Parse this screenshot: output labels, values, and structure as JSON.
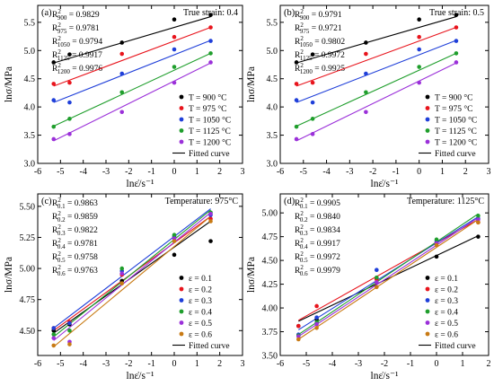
{
  "figure": {
    "panel_labels": [
      "(a)",
      "(b)",
      "(c)",
      "(d)"
    ]
  },
  "chart_data": [
    {
      "type": "scatter",
      "panel": "(a)",
      "condition": "True strain: 0.4",
      "xlabel": "lnε̇/s⁻¹",
      "ylabel": "lnσ/MPa",
      "xlim": [
        -6,
        3
      ],
      "ylim": [
        3.0,
        5.8
      ],
      "xticks": [
        -6,
        -5,
        -4,
        -3,
        -2,
        -1,
        0,
        1,
        2,
        3
      ],
      "yticks": [
        3.0,
        3.5,
        4.0,
        4.5,
        5.0,
        5.5
      ],
      "grid": false,
      "legend_position": "lower-right",
      "r2": [
        {
          "sub": "900",
          "value": "0.9829"
        },
        {
          "sub": "975",
          "value": "0.9781"
        },
        {
          "sub": "1050",
          "value": "0.9794"
        },
        {
          "sub": "1125",
          "value": "0.9917"
        },
        {
          "sub": "1200",
          "value": "0.9976"
        }
      ],
      "series": [
        {
          "name": "T = 900 °C",
          "color": "#000000",
          "x": [
            -5.3,
            -4.6,
            -2.3,
            0,
            1.6
          ],
          "y": [
            4.79,
            4.93,
            5.14,
            5.55,
            5.63
          ],
          "fit": [
            -5.3,
            4.78,
            1.6,
            5.6
          ]
        },
        {
          "name": "T = 975 °C",
          "color": "#e8141c",
          "x": [
            -5.3,
            -4.6,
            -2.3,
            0,
            1.6
          ],
          "y": [
            4.41,
            4.43,
            4.94,
            5.24,
            5.41
          ],
          "fit": [
            -5.3,
            4.37,
            1.6,
            5.41
          ]
        },
        {
          "name": "T = 1050 °C",
          "color": "#1f3fd9",
          "x": [
            -5.3,
            -4.6,
            -2.3,
            0,
            1.6
          ],
          "y": [
            4.12,
            4.08,
            4.59,
            5.02,
            5.17
          ],
          "fit": [
            -5.3,
            4.08,
            1.6,
            5.18
          ]
        },
        {
          "name": "T = 1125 °C",
          "color": "#1f9e2c",
          "x": [
            -5.3,
            -4.6,
            -2.3,
            0,
            1.6
          ],
          "y": [
            3.65,
            3.79,
            4.26,
            4.71,
            4.95
          ],
          "fit": [
            -5.3,
            3.66,
            1.6,
            4.95
          ]
        },
        {
          "name": "T = 1200 °C",
          "color": "#9b30d9",
          "x": [
            -5.3,
            -4.6,
            -2.3,
            0,
            1.6
          ],
          "y": [
            3.43,
            3.52,
            3.91,
            4.43,
            4.79
          ],
          "fit": [
            -5.3,
            3.4,
            1.6,
            4.78
          ]
        }
      ],
      "fitted_label": "Fitted curve"
    },
    {
      "type": "scatter",
      "panel": "(b)",
      "condition": "True strain: 0.5",
      "xlabel": "lnε̇/s⁻¹",
      "ylabel": "lnσ/MPa",
      "xlim": [
        -6,
        3
      ],
      "ylim": [
        3.0,
        5.8
      ],
      "xticks": [
        -6,
        -5,
        -4,
        -3,
        -2,
        -1,
        0,
        1,
        2,
        3
      ],
      "yticks": [
        3.0,
        3.5,
        4.0,
        4.5,
        5.0,
        5.5
      ],
      "grid": false,
      "legend_position": "lower-right",
      "r2": [
        {
          "sub": "900",
          "value": "0.9791"
        },
        {
          "sub": "975",
          "value": "0.9721"
        },
        {
          "sub": "1050",
          "value": "0.9802"
        },
        {
          "sub": "1125",
          "value": "0.9972"
        },
        {
          "sub": "1200",
          "value": "0.9925"
        }
      ],
      "series": [
        {
          "name": "T = 900 °C",
          "color": "#000000",
          "x": [
            -5.3,
            -4.6,
            -2.3,
            0,
            1.6
          ],
          "y": [
            4.79,
            4.93,
            5.14,
            5.55,
            5.63
          ],
          "fit": [
            -5.3,
            4.78,
            1.6,
            5.6
          ]
        },
        {
          "name": "T = 975 °C",
          "color": "#e8141c",
          "x": [
            -5.3,
            -4.6,
            -2.3,
            0,
            1.6
          ],
          "y": [
            4.41,
            4.43,
            4.94,
            5.24,
            5.41
          ],
          "fit": [
            -5.3,
            4.37,
            1.6,
            5.41
          ]
        },
        {
          "name": "T = 1050 °C",
          "color": "#1f3fd9",
          "x": [
            -5.3,
            -4.6,
            -2.3,
            0,
            1.6
          ],
          "y": [
            4.12,
            4.08,
            4.59,
            5.02,
            5.17
          ],
          "fit": [
            -5.3,
            4.08,
            1.6,
            5.18
          ]
        },
        {
          "name": "T = 1125 °C",
          "color": "#1f9e2c",
          "x": [
            -5.3,
            -4.6,
            -2.3,
            0,
            1.6
          ],
          "y": [
            3.65,
            3.79,
            4.26,
            4.71,
            4.95
          ],
          "fit": [
            -5.3,
            3.66,
            1.6,
            4.95
          ]
        },
        {
          "name": "T = 1200 °C",
          "color": "#9b30d9",
          "x": [
            -5.3,
            -4.6,
            -2.3,
            0,
            1.6
          ],
          "y": [
            3.43,
            3.52,
            3.91,
            4.43,
            4.79
          ],
          "fit": [
            -5.3,
            3.4,
            1.6,
            4.78
          ]
        }
      ],
      "fitted_label": "Fitted curve"
    },
    {
      "type": "scatter",
      "panel": "(c)",
      "condition": "Temperature: 975°C",
      "xlabel": "lnε̇/s⁻¹",
      "ylabel": "lnσ/MPa",
      "xlim": [
        -6,
        3
      ],
      "ylim": [
        4.3,
        5.6
      ],
      "xticks": [
        -6,
        -5,
        -4,
        -3,
        -2,
        -1,
        0,
        1,
        2,
        3
      ],
      "yticks": [
        4.5,
        4.75,
        5.0,
        5.25,
        5.5
      ],
      "grid": false,
      "legend_position": "lower-right",
      "r2": [
        {
          "sub": "0.1",
          "value": "0.9863"
        },
        {
          "sub": "0.2",
          "value": "0.9859"
        },
        {
          "sub": "0.3",
          "value": "0.9822"
        },
        {
          "sub": "0.4",
          "value": "0.9781"
        },
        {
          "sub": "0.5",
          "value": "0.9758"
        },
        {
          "sub": "0.6",
          "value": "0.9763"
        }
      ],
      "series": [
        {
          "name": "ε = 0.1",
          "color": "#000000",
          "x": [
            -5.3,
            -4.6,
            -2.3,
            0,
            1.6
          ],
          "y": [
            4.5,
            4.55,
            4.9,
            5.11,
            5.22
          ],
          "fit": [
            -5.3,
            4.48,
            1.6,
            5.38
          ]
        },
        {
          "name": "ε = 0.2",
          "color": "#e8141c",
          "x": [
            -5.3,
            -4.6,
            -2.3,
            0,
            1.6
          ],
          "y": [
            4.52,
            4.57,
            4.95,
            5.25,
            5.4
          ],
          "fit": [
            -5.3,
            4.5,
            1.6,
            5.42
          ]
        },
        {
          "name": "ε = 0.3",
          "color": "#1f3fd9",
          "x": [
            -5.3,
            -4.6,
            -2.3,
            0,
            1.6
          ],
          "y": [
            4.52,
            4.56,
            4.98,
            5.26,
            5.43
          ],
          "fit": [
            -5.3,
            4.52,
            1.6,
            5.48
          ]
        },
        {
          "name": "ε = 0.4",
          "color": "#1f9e2c",
          "x": [
            -5.3,
            -4.6,
            -2.3,
            0,
            1.6
          ],
          "y": [
            4.47,
            4.5,
            5.0,
            5.27,
            5.45
          ],
          "fit": [
            -5.3,
            4.45,
            1.6,
            5.47
          ]
        },
        {
          "name": "ε = 0.5",
          "color": "#9b30d9",
          "x": [
            -5.3,
            -4.6,
            -2.3,
            0,
            1.6
          ],
          "y": [
            4.44,
            4.41,
            4.96,
            5.24,
            5.44
          ],
          "fit": [
            -5.3,
            4.42,
            1.6,
            5.45
          ]
        },
        {
          "name": "ε = 0.6",
          "color": "#c87a14",
          "x": [
            -5.3,
            -4.6,
            -2.3,
            0,
            1.6
          ],
          "y": [
            4.38,
            4.39,
            4.88,
            5.22,
            5.38
          ],
          "fit": [
            -5.3,
            4.37,
            1.6,
            5.42
          ]
        }
      ],
      "fitted_label": "Fitted curve"
    },
    {
      "type": "scatter",
      "panel": "(d)",
      "condition": "Temperature: 1125°C",
      "xlabel": "lnε̇/s⁻¹",
      "ylabel": "lnσ/MPa",
      "xlim": [
        -6,
        2
      ],
      "ylim": [
        3.5,
        5.2
      ],
      "xticks": [
        -6,
        -5,
        -4,
        -3,
        -2,
        -1,
        0,
        1,
        2
      ],
      "yticks": [
        3.5,
        3.75,
        4.0,
        4.25,
        4.5,
        4.75,
        5.0
      ],
      "grid": false,
      "legend_position": "lower-right",
      "r2": [
        {
          "sub": "0.1",
          "value": "0.9905"
        },
        {
          "sub": "0.2",
          "value": "0.9840"
        },
        {
          "sub": "0.3",
          "value": "0.9834"
        },
        {
          "sub": "0.4",
          "value": "0.9917"
        },
        {
          "sub": "0.5",
          "value": "0.9972"
        },
        {
          "sub": "0.6",
          "value": "0.9979"
        }
      ],
      "series": [
        {
          "name": "ε = 0.1",
          "color": "#000000",
          "x": [
            -5.3,
            -4.6,
            -2.3,
            0,
            1.6
          ],
          "y": [
            3.81,
            3.88,
            4.31,
            4.54,
            4.75
          ],
          "fit": [
            -5.3,
            3.86,
            1.6,
            4.76
          ]
        },
        {
          "name": "ε = 0.2",
          "color": "#e8141c",
          "x": [
            -5.3,
            -4.6,
            -2.3,
            0,
            1.6
          ],
          "y": [
            3.81,
            4.02,
            4.3,
            4.68,
            4.9
          ],
          "fit": [
            -5.3,
            3.87,
            1.6,
            4.93
          ]
        },
        {
          "name": "ε = 0.3",
          "color": "#1f3fd9",
          "x": [
            -5.3,
            -4.6,
            -2.3,
            0,
            1.6
          ],
          "y": [
            3.72,
            3.9,
            4.4,
            4.7,
            4.94
          ],
          "fit": [
            -5.3,
            3.77,
            1.6,
            4.96
          ]
        },
        {
          "name": "ε = 0.4",
          "color": "#1f9e2c",
          "x": [
            -5.3,
            -4.6,
            -2.3,
            0,
            1.6
          ],
          "y": [
            3.71,
            3.85,
            4.32,
            4.72,
            4.97
          ],
          "fit": [
            -5.3,
            3.72,
            1.6,
            4.99
          ]
        },
        {
          "name": "ε = 0.5",
          "color": "#9b30d9",
          "x": [
            -5.3,
            -4.6,
            -2.3,
            0,
            1.6
          ],
          "y": [
            3.7,
            3.83,
            4.27,
            4.68,
            4.93
          ],
          "fit": [
            -5.3,
            3.7,
            1.6,
            4.95
          ]
        },
        {
          "name": "ε = 0.6",
          "color": "#c87a14",
          "x": [
            -5.3,
            -4.6,
            -2.3,
            0,
            1.6
          ],
          "y": [
            3.67,
            3.79,
            4.22,
            4.66,
            4.9
          ],
          "fit": [
            -5.3,
            3.67,
            1.6,
            4.93
          ]
        }
      ],
      "fitted_label": "Fitted curve"
    }
  ]
}
